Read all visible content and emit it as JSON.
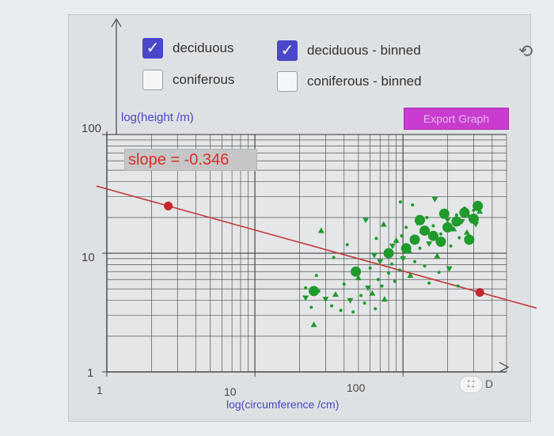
{
  "checkboxes": [
    {
      "label": "deciduous",
      "checked": true
    },
    {
      "label": "deciduous - binned",
      "checked": true
    },
    {
      "label": "coniferous",
      "checked": false
    },
    {
      "label": "coniferous - binned",
      "checked": false
    }
  ],
  "export_button": "Export Graph",
  "refresh_icon": "refresh-icon",
  "slope_label": "slope = -0.346",
  "fullscreen_glyph": "⛶",
  "fullscreen_suffix": "D",
  "colors": {
    "accent": "#4a47c9",
    "export": "#c93ccf",
    "fit_line": "#c33a3a",
    "points": "#1f9a2c"
  },
  "chart_data": {
    "type": "scatter",
    "title": "",
    "xlabel": "log(circumference /cm)",
    "ylabel": "log(height /m)",
    "x_scale": "log",
    "y_scale": "log",
    "xlim": [
      1,
      500
    ],
    "ylim": [
      1,
      100
    ],
    "x_ticks": [
      "1",
      "10",
      "100"
    ],
    "y_ticks": [
      "1",
      "10",
      "100"
    ],
    "grid": true,
    "fit_line": {
      "slope": -0.346,
      "through": [
        [
          2.6,
          25
        ],
        [
          330,
          4.5
        ]
      ]
    },
    "series": [
      {
        "points": [
          [
            22,
            4.2
          ],
          [
            24,
            3.5
          ],
          [
            25,
            2.5
          ],
          [
            22,
            5.1
          ],
          [
            27,
            4.8
          ],
          [
            30,
            4.1
          ],
          [
            33,
            3.6
          ],
          [
            35,
            4.5
          ],
          [
            38,
            3.3
          ],
          [
            40,
            5.5
          ],
          [
            44,
            4.0
          ],
          [
            46,
            3.2
          ],
          [
            50,
            6.2
          ],
          [
            52,
            4.4
          ],
          [
            55,
            3.8
          ],
          [
            58,
            5.1
          ],
          [
            60,
            7.5
          ],
          [
            62,
            4.6
          ],
          [
            65,
            3.4
          ],
          [
            68,
            6.0
          ],
          [
            70,
            8.5
          ],
          [
            72,
            5.3
          ],
          [
            75,
            4.1
          ],
          [
            78,
            9.8
          ],
          [
            80,
            6.8
          ],
          [
            85,
            11.5
          ],
          [
            88,
            5.8
          ],
          [
            90,
            12.8
          ],
          [
            95,
            7.2
          ],
          [
            98,
            14.0
          ],
          [
            100,
            9.0
          ],
          [
            105,
            16.5
          ],
          [
            110,
            10.5
          ],
          [
            115,
            13.0
          ],
          [
            120,
            8.5
          ],
          [
            125,
            18.0
          ],
          [
            130,
            11.0
          ],
          [
            135,
            15.5
          ],
          [
            140,
            7.8
          ],
          [
            145,
            20.0
          ],
          [
            150,
            12.0
          ],
          [
            160,
            17.0
          ],
          [
            170,
            9.5
          ],
          [
            180,
            14.5
          ],
          [
            190,
            22.0
          ],
          [
            200,
            19.0
          ],
          [
            210,
            11.5
          ],
          [
            220,
            16.0
          ],
          [
            230,
            21.0
          ],
          [
            240,
            13.5
          ],
          [
            250,
            18.5
          ],
          [
            260,
            24.0
          ],
          [
            270,
            15.0
          ],
          [
            280,
            20.5
          ],
          [
            300,
            23.0
          ],
          [
            310,
            17.5
          ],
          [
            320,
            26.5
          ],
          [
            330,
            22.5
          ],
          [
            26,
            6.5
          ],
          [
            48,
            7.2
          ],
          [
            64,
            9.6
          ],
          [
            84,
            8.1
          ],
          [
            112,
            6.5
          ],
          [
            150,
            5.6
          ],
          [
            175,
            6.9
          ],
          [
            205,
            7.4
          ],
          [
            235,
            5.3
          ],
          [
            28,
            15.5
          ],
          [
            34,
            9.2
          ],
          [
            42,
            11.8
          ],
          [
            56,
            19.0
          ],
          [
            66,
            13.3
          ],
          [
            74,
            17.5
          ],
          [
            96,
            27.0
          ],
          [
            116,
            25.5
          ],
          [
            164,
            28.5
          ]
        ]
      },
      {
        "binned": true,
        "points": [
          [
            25,
            4.8
          ],
          [
            48,
            7.0
          ],
          [
            80,
            10.0
          ],
          [
            105,
            11.0
          ],
          [
            120,
            13.0
          ],
          [
            140,
            15.5
          ],
          [
            160,
            14.0
          ],
          [
            180,
            12.5
          ],
          [
            200,
            16.5
          ],
          [
            230,
            18.5
          ],
          [
            260,
            22.0
          ],
          [
            280,
            13.0
          ],
          [
            300,
            19.5
          ],
          [
            320,
            25.0
          ],
          [
            130,
            19.0
          ],
          [
            190,
            21.5
          ]
        ]
      }
    ]
  }
}
